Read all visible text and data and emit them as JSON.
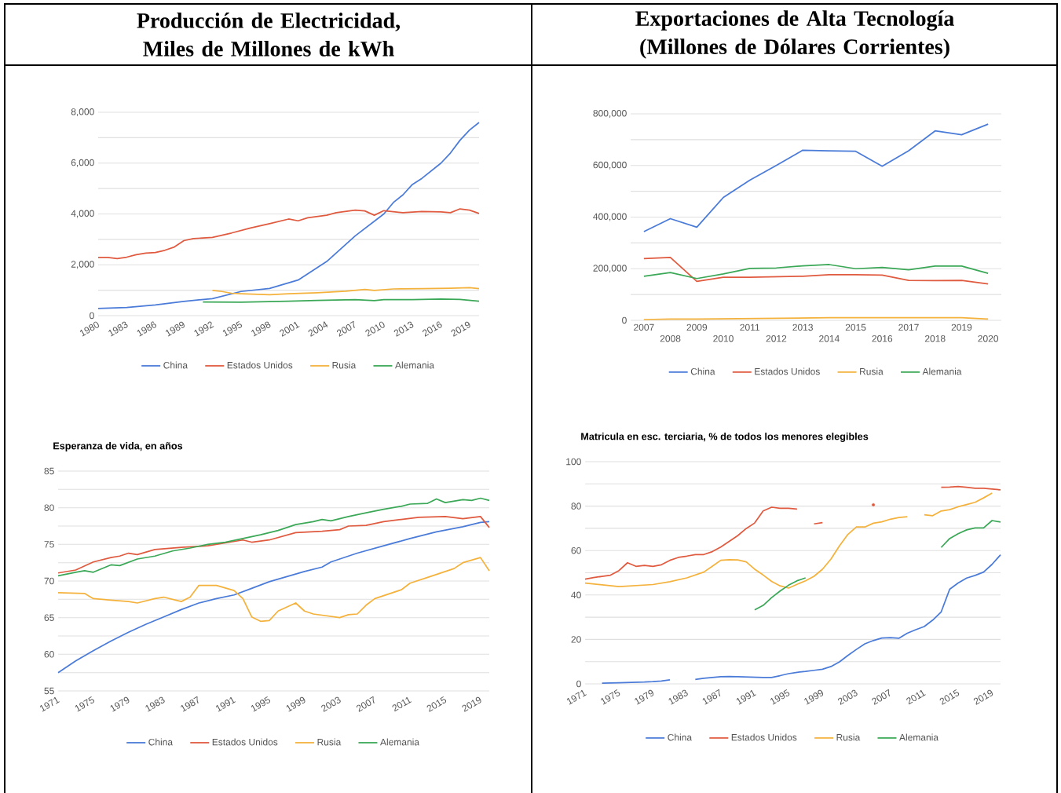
{
  "chart_data": [
    {
      "type": "line",
      "title": "Producción de Electricidad, Miles de Millones de kWh",
      "xlim": [
        1980,
        2020
      ],
      "xticks": [
        1980,
        1983,
        1986,
        1989,
        1992,
        1995,
        1998,
        2001,
        2004,
        2007,
        2010,
        2013,
        2016,
        2019
      ],
      "ylim": [
        0,
        8000
      ],
      "yticks": [
        0,
        {
          "value": 1000,
          "label": null
        },
        {
          "value": 2000,
          "label": "2,000"
        },
        {
          "value": 3000,
          "label": null
        },
        {
          "value": 4000,
          "label": "4,000"
        },
        {
          "value": 5000,
          "label": null
        },
        {
          "value": 6000,
          "label": "6,000"
        },
        {
          "value": 7000,
          "label": null
        },
        {
          "value": 8000,
          "label": "8,000"
        }
      ],
      "grid": "y",
      "legend": "bottom",
      "series": [
        {
          "name": "China",
          "color": "#4a7bd8",
          "x": [
            1980,
            1983,
            1986,
            1989,
            1992,
            1995,
            1998,
            2001,
            2004,
            2007,
            2010,
            2011,
            2012,
            2013,
            2014,
            2016,
            2017,
            2018,
            2019,
            2020
          ],
          "values": [
            280,
            320,
            420,
            560,
            670,
            950,
            1070,
            1400,
            2130,
            3140,
            4000,
            4450,
            4750,
            5160,
            5400,
            6000,
            6400,
            6900,
            7300,
            7600
          ]
        },
        {
          "name": "Estados Unidos",
          "color": "#e05a3f",
          "x": [
            1980,
            1981,
            1982,
            1983,
            1984,
            1985,
            1986,
            1987,
            1988,
            1989,
            1990,
            1992,
            1994,
            1996,
            1998,
            2000,
            2001,
            2002,
            2004,
            2005,
            2007,
            2008,
            2009,
            2010,
            2012,
            2014,
            2016,
            2017,
            2018,
            2019,
            2020
          ],
          "values": [
            2290,
            2290,
            2240,
            2300,
            2400,
            2460,
            2480,
            2570,
            2700,
            2950,
            3030,
            3080,
            3250,
            3450,
            3620,
            3800,
            3730,
            3850,
            3950,
            4050,
            4150,
            4120,
            3950,
            4130,
            4050,
            4100,
            4080,
            4050,
            4200,
            4150,
            4020
          ]
        },
        {
          "name": "Rusia",
          "color": "#f4b23c",
          "x": [
            1992,
            1993,
            1994,
            1995,
            1998,
            2000,
            2003,
            2006,
            2008,
            2009,
            2011,
            2014,
            2017,
            2019,
            2020
          ],
          "values": [
            990,
            950,
            880,
            860,
            820,
            860,
            900,
            960,
            1030,
            990,
            1050,
            1060,
            1080,
            1100,
            1060
          ]
        },
        {
          "name": "Alemania",
          "color": "#3aa856",
          "x": [
            1991,
            1995,
            2000,
            2003,
            2007,
            2009,
            2010,
            2013,
            2016,
            2018,
            2020
          ],
          "values": [
            540,
            530,
            570,
            600,
            630,
            590,
            630,
            630,
            650,
            640,
            570
          ]
        }
      ]
    },
    {
      "type": "line",
      "title": "Exportaciones de Alta Tecnología (Millones de Dólares Corrientes)",
      "categories": [
        "2007",
        "2008",
        "2009",
        "2010",
        "2011",
        "2012",
        "2013",
        "2014",
        "2015",
        "2016",
        "2017",
        "2018",
        "2019",
        "2020"
      ],
      "ylim": [
        0,
        800000
      ],
      "yticks": [
        0,
        {
          "value": 100000,
          "label": null
        },
        {
          "value": 200000,
          "label": "200,000"
        },
        {
          "value": 300000,
          "label": null
        },
        {
          "value": 400000,
          "label": "400,000"
        },
        {
          "value": 500000,
          "label": null
        },
        {
          "value": 600000,
          "label": "600,000"
        },
        {
          "value": 700000,
          "label": null
        },
        {
          "value": 800000,
          "label": "800,000"
        }
      ],
      "grid": "y",
      "legend": "bottom",
      "series": [
        {
          "name": "China",
          "color": "#4a7bd8",
          "values": [
            344000,
            394000,
            361000,
            476000,
            543000,
            600000,
            659000,
            657000,
            655000,
            597000,
            657000,
            734000,
            719000,
            760000
          ]
        },
        {
          "name": "Estados Unidos",
          "color": "#e05a3f",
          "values": [
            239000,
            244000,
            151000,
            167000,
            167000,
            169000,
            171000,
            177000,
            177000,
            175000,
            155000,
            154000,
            155000,
            141000
          ]
        },
        {
          "name": "Rusia",
          "color": "#f4b23c",
          "values": [
            3000,
            5000,
            5000,
            6000,
            7000,
            8000,
            9000,
            10000,
            10000,
            10000,
            10000,
            10000,
            10000,
            5000
          ]
        },
        {
          "name": "Alemania",
          "color": "#3aa856",
          "values": [
            171000,
            185000,
            162000,
            180000,
            201000,
            203000,
            211000,
            216000,
            200000,
            205000,
            196000,
            210000,
            210000,
            182000
          ]
        }
      ]
    },
    {
      "type": "line",
      "title": "Esperanza de vida, en años",
      "xlim": [
        1971,
        2020
      ],
      "xticks": [
        1971,
        1975,
        1979,
        1983,
        1987,
        1991,
        1995,
        1999,
        2003,
        2007,
        2011,
        2015,
        2019
      ],
      "ylim": [
        55,
        85
      ],
      "yticks": [
        55,
        {
          "value": 57.5,
          "label": null
        },
        60,
        {
          "value": 62.5,
          "label": null
        },
        65,
        {
          "value": 67.5,
          "label": null
        },
        70,
        {
          "value": 72.5,
          "label": null
        },
        75,
        {
          "value": 77.5,
          "label": null
        },
        80,
        {
          "value": 82.5,
          "label": null
        },
        85
      ],
      "grid": "y",
      "legend": "bottom",
      "series": [
        {
          "name": "China",
          "color": "#4a7bd8",
          "x": [
            1971,
            1973,
            1975,
            1977,
            1979,
            1981,
            1983,
            1985,
            1987,
            1989,
            1991,
            1993,
            1995,
            1997,
            1999,
            2001,
            2002,
            2005,
            2008,
            2011,
            2014,
            2017,
            2019,
            2020
          ],
          "values": [
            57.5,
            59.1,
            60.5,
            61.8,
            63.0,
            64.1,
            65.1,
            66.1,
            67.0,
            67.6,
            68.1,
            69.0,
            69.9,
            70.6,
            71.3,
            71.9,
            72.6,
            73.8,
            74.8,
            75.8,
            76.7,
            77.4,
            78.0,
            78.1
          ]
        },
        {
          "name": "Estados Unidos",
          "color": "#e05a3f",
          "x": [
            1971,
            1973,
            1975,
            1977,
            1978,
            1979,
            1980,
            1982,
            1985,
            1988,
            1990,
            1992,
            1993,
            1995,
            1998,
            2001,
            2003,
            2004,
            2006,
            2008,
            2010,
            2012,
            2015,
            2017,
            2019,
            2020
          ],
          "values": [
            71.1,
            71.5,
            72.6,
            73.2,
            73.4,
            73.8,
            73.6,
            74.3,
            74.6,
            74.8,
            75.2,
            75.6,
            75.3,
            75.6,
            76.6,
            76.8,
            77.0,
            77.5,
            77.6,
            78.1,
            78.4,
            78.7,
            78.8,
            78.5,
            78.8,
            77.3
          ]
        },
        {
          "name": "Rusia",
          "color": "#f4b23c",
          "x": [
            1971,
            1974,
            1975,
            1977,
            1979,
            1980,
            1982,
            1983,
            1985,
            1986,
            1987,
            1989,
            1991,
            1992,
            1993,
            1994,
            1995,
            1996,
            1998,
            1999,
            2000,
            2003,
            2004,
            2005,
            2006,
            2007,
            2009,
            2010,
            2011,
            2013,
            2015,
            2016,
            2017,
            2019,
            2020
          ],
          "values": [
            68.4,
            68.3,
            67.6,
            67.4,
            67.2,
            67.0,
            67.6,
            67.8,
            67.2,
            67.8,
            69.4,
            69.4,
            68.7,
            67.6,
            65.1,
            64.5,
            64.6,
            65.9,
            67.0,
            65.9,
            65.5,
            65.0,
            65.4,
            65.5,
            66.7,
            67.6,
            68.4,
            68.8,
            69.7,
            70.5,
            71.3,
            71.7,
            72.5,
            73.2,
            71.4
          ]
        },
        {
          "name": "Alemania",
          "color": "#3aa856",
          "x": [
            1971,
            1973,
            1974,
            1975,
            1977,
            1978,
            1980,
            1982,
            1984,
            1986,
            1988,
            1990,
            1992,
            1994,
            1996,
            1998,
            2000,
            2001,
            2002,
            2004,
            2006,
            2008,
            2010,
            2011,
            2013,
            2014,
            2015,
            2017,
            2018,
            2019,
            2020
          ],
          "values": [
            70.7,
            71.2,
            71.4,
            71.2,
            72.2,
            72.1,
            73.0,
            73.4,
            74.1,
            74.5,
            75.0,
            75.3,
            75.8,
            76.3,
            76.9,
            77.7,
            78.1,
            78.4,
            78.2,
            78.8,
            79.3,
            79.8,
            80.2,
            80.5,
            80.6,
            81.2,
            80.7,
            81.1,
            81.0,
            81.3,
            81.0
          ]
        }
      ]
    },
    {
      "type": "line",
      "title": "Matricula en esc. terciaria, % de todos los menores elegibles",
      "xlim": [
        1971,
        2020
      ],
      "xticks": [
        1971,
        1975,
        1979,
        1983,
        1987,
        1991,
        1995,
        1999,
        2003,
        2007,
        2011,
        2015,
        2019
      ],
      "ylim": [
        0,
        100
      ],
      "yticks": [
        0,
        {
          "value": 10,
          "label": null
        },
        20,
        {
          "value": 30,
          "label": null
        },
        40,
        {
          "value": 50,
          "label": null
        },
        60,
        {
          "value": 70,
          "label": null
        },
        80,
        {
          "value": 90,
          "label": null
        },
        100
      ],
      "grid": "y",
      "legend": "bottom",
      "series": [
        {
          "name": "China",
          "color": "#4a7bd8",
          "x": [
            1973,
            1974,
            1975,
            1976,
            1977,
            1978,
            1979,
            1980,
            1981,
            1982,
            1984,
            1985,
            1986,
            1987,
            1988,
            1989,
            1990,
            1991,
            1992,
            1993,
            1994,
            1995,
            1996,
            1997,
            1998,
            1999,
            2000,
            2001,
            2002,
            2003,
            2004,
            2005,
            2006,
            2007,
            2008,
            2009,
            2010,
            2011,
            2012,
            2013,
            2014,
            2015,
            2016,
            2017,
            2018,
            2019,
            2020
          ],
          "values": [
            0.3,
            0.4,
            0.5,
            0.6,
            0.7,
            0.8,
            1.0,
            1.3,
            1.8,
            null,
            2.0,
            2.5,
            2.9,
            3.2,
            3.3,
            3.2,
            3.1,
            3.0,
            2.9,
            2.9,
            3.7,
            4.6,
            5.2,
            5.6,
            6.1,
            6.6,
            7.8,
            9.9,
            12.8,
            15.5,
            18.0,
            19.5,
            20.6,
            20.8,
            20.5,
            22.8,
            24.4,
            25.8,
            28.7,
            32.4,
            42.6,
            45.4,
            47.6,
            48.8,
            50.3,
            53.8,
            58.1
          ]
        },
        {
          "name": "Estados Unidos",
          "color": "#e05a3f",
          "x": [
            1971,
            1972,
            1973,
            1974,
            1975,
            1976,
            1977,
            1978,
            1979,
            1980,
            1981,
            1982,
            1983,
            1984,
            1985,
            1986,
            1987,
            1988,
            1989,
            1990,
            1991,
            1992,
            1993,
            1994,
            1995,
            1996,
            1997,
            1998,
            1999,
            2000,
            2005,
            2006,
            2013,
            2014,
            2015,
            2016,
            2017,
            2018,
            2019,
            2020
          ],
          "values": [
            47.1,
            47.8,
            48.4,
            48.9,
            51.0,
            54.5,
            52.9,
            53.3,
            52.9,
            53.6,
            55.6,
            56.9,
            57.5,
            58.2,
            58.2,
            59.5,
            61.6,
            64.1,
            66.7,
            69.9,
            72.4,
            77.8,
            79.5,
            79.0,
            79.0,
            78.7,
            null,
            72.0,
            72.6,
            null,
            80.6,
            null,
            88.5,
            88.6,
            88.8,
            88.5,
            88.0,
            88.0,
            87.7,
            87.3
          ]
        },
        {
          "name": "Rusia",
          "color": "#f4b23c",
          "x": [
            1971,
            1975,
            1979,
            1981,
            1983,
            1985,
            1986,
            1987,
            1988,
            1989,
            1990,
            1991,
            1992,
            1993,
            1994,
            1995,
            1996,
            1997,
            1998,
            1999,
            2000,
            2001,
            2002,
            2003,
            2004,
            2005,
            2006,
            2007,
            2008,
            2009,
            2010,
            2011,
            2012,
            2013,
            2014,
            2015,
            2016,
            2017,
            2018,
            2019
          ],
          "values": [
            45.4,
            43.8,
            44.7,
            46.0,
            47.7,
            50.3,
            52.9,
            55.6,
            55.9,
            55.8,
            54.9,
            51.6,
            49.0,
            46.1,
            44.1,
            43.1,
            44.8,
            46.4,
            48.4,
            51.6,
            56.2,
            62.1,
            67.3,
            70.6,
            70.6,
            72.3,
            72.9,
            74.1,
            74.9,
            75.2,
            null,
            76.1,
            75.7,
            77.8,
            78.4,
            79.7,
            80.7,
            81.7,
            83.7,
            85.9
          ]
        },
        {
          "name": "Alemania",
          "color": "#3aa856",
          "x": [
            1991,
            1992,
            1993,
            1994,
            1995,
            1996,
            1997,
            1998,
            2013,
            2014,
            2015,
            2016,
            2017,
            2018,
            2019,
            2020
          ],
          "values": [
            33.3,
            35.3,
            38.8,
            41.8,
            44.4,
            46.4,
            47.7,
            null,
            61.4,
            65.4,
            67.6,
            69.3,
            70.2,
            70.2,
            73.5,
            72.8
          ]
        }
      ]
    }
  ]
}
